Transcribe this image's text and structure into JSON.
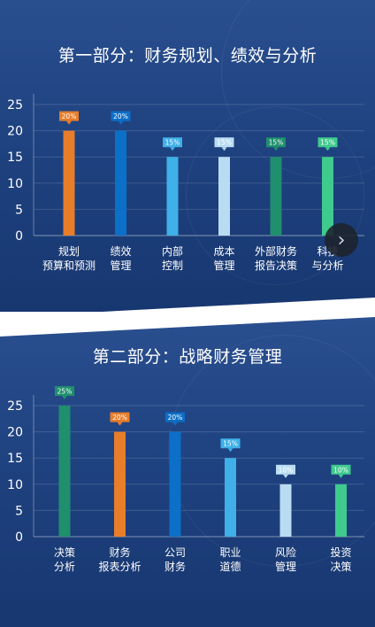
{
  "panel1": {
    "title": "第一部分：财务规划、绩效与分析",
    "chart_data": {
      "type": "bar",
      "categories": [
        [
          "规划",
          "预算和预测"
        ],
        [
          "绩效",
          "管理"
        ],
        [
          "内部",
          "控制"
        ],
        [
          "成本",
          "管理"
        ],
        [
          "外部财务",
          "报告决策"
        ],
        [
          "科技",
          "与分析"
        ]
      ],
      "values": [
        20,
        20,
        15,
        15,
        15,
        15
      ],
      "value_labels": [
        "20%",
        "20%",
        "15%",
        "15%",
        "15%",
        "15%"
      ],
      "colors": [
        "#e87d2a",
        "#0c6fc8",
        "#3fb0e8",
        "#b9dcf2",
        "#1f8f6d",
        "#3fca8e"
      ],
      "yticks": [
        "0",
        "5",
        "10",
        "15",
        "20",
        "25"
      ],
      "ylim": [
        0,
        25
      ]
    }
  },
  "panel2": {
    "title": "第二部分：战略财务管理",
    "chart_data": {
      "type": "bar",
      "categories": [
        [
          "决策",
          "分析"
        ],
        [
          "财务",
          "报表分析"
        ],
        [
          "公司",
          "财务"
        ],
        [
          "职业",
          "道德"
        ],
        [
          "风险",
          "管理"
        ],
        [
          "投资",
          "决策"
        ]
      ],
      "values": [
        25,
        20,
        20,
        15,
        10,
        10
      ],
      "value_labels": [
        "25%",
        "20%",
        "20%",
        "15%",
        "10%",
        "10%"
      ],
      "colors": [
        "#1f8f6d",
        "#e87d2a",
        "#0c6fc8",
        "#3fb0e8",
        "#b9dcf2",
        "#3fca8e"
      ],
      "yticks": [
        "0",
        "5",
        "10",
        "15",
        "20",
        "25"
      ],
      "ylim": [
        0,
        25
      ]
    }
  },
  "nav": {
    "next_icon": "chevron-right-icon"
  }
}
